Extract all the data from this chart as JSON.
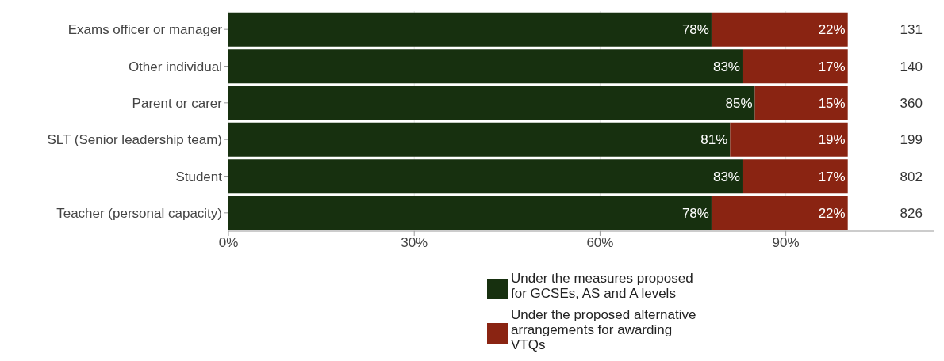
{
  "chart_data": {
    "type": "bar",
    "orientation": "horizontal",
    "stacked": true,
    "categories": [
      "Exams officer or manager",
      "Other individual",
      "Parent or carer",
      "SLT (Senior leadership team)",
      "Student",
      "Teacher (personal capacity)"
    ],
    "series": [
      {
        "name": "Under the measures proposed for GCSEs, AS and A levels",
        "color": "#17300f",
        "values": [
          78,
          83,
          85,
          81,
          83,
          78
        ],
        "value_labels": [
          "78%",
          "83%",
          "85%",
          "81%",
          "83%",
          "78%"
        ]
      },
      {
        "name": "Under the proposed alternative arrangements for awarding VTQs",
        "color": "#8a2412",
        "values": [
          22,
          17,
          15,
          19,
          17,
          22
        ],
        "value_labels": [
          "22%",
          "17%",
          "15%",
          "19%",
          "17%",
          "22%"
        ]
      }
    ],
    "xlim": [
      0,
      114
    ],
    "xticks": [
      {
        "value": 0,
        "label": "0%"
      },
      {
        "value": 30,
        "label": "30%"
      },
      {
        "value": 60,
        "label": "60%"
      },
      {
        "value": 90,
        "label": "90%"
      }
    ],
    "grid": "x",
    "legend": "bottom",
    "annotations": [
      "131",
      "140",
      "360",
      "199",
      "802",
      "826"
    ]
  }
}
